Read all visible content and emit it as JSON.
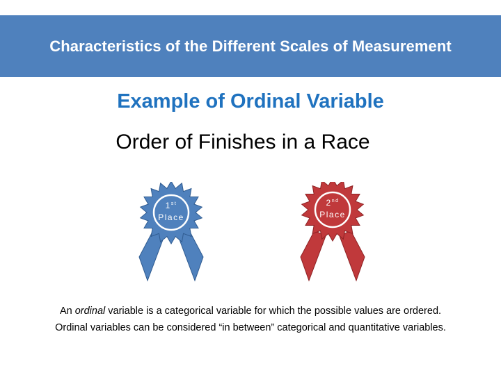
{
  "header": {
    "title": "Characteristics of the Different Scales of Measurement"
  },
  "subtitle": "Example of Ordinal Variable",
  "example_title": "Order of Finishes in a Race",
  "ribbons": [
    {
      "number": "1",
      "suffix": "st",
      "label": "Place",
      "color": "#4f81bd",
      "edge": "#2f5b90"
    },
    {
      "number": "2",
      "suffix": "nd",
      "label": "Place",
      "color": "#c0393b",
      "edge": "#8e2224"
    }
  ],
  "description": {
    "line1_pre": "An ",
    "line1_em": "ordinal",
    "line1_post": " variable is a categorical variable for which the possible values are ordered.",
    "line2": "Ordinal variables can be considered “in between” categorical and quantitative variables."
  }
}
